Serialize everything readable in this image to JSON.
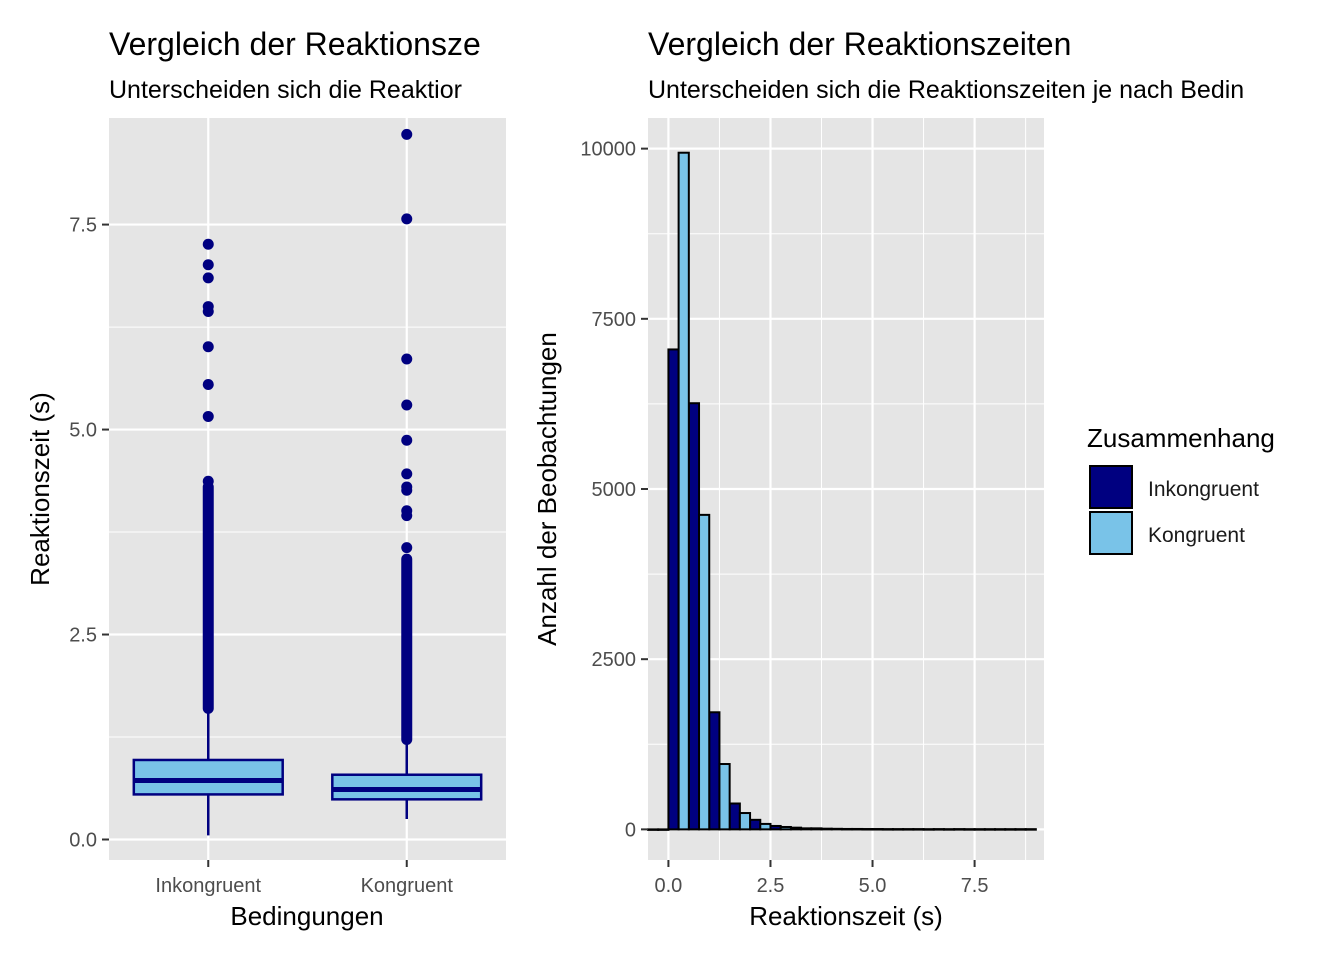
{
  "colors": {
    "inkongruent": "#000080",
    "kongruent": "#79c3e8",
    "panel_bg": "#e5e5e5",
    "grid": "#ffffff",
    "outlier": "#000080"
  },
  "chart_data": [
    {
      "type": "boxplot",
      "title": "Vergleich der Reaktionsze",
      "subtitle": "Unterscheiden sich die Reaktior",
      "xlabel": "Bedingungen",
      "ylabel": "Reaktionszeit (s)",
      "ylim": [
        -0.25,
        8.8
      ],
      "yticks": [
        0.0,
        2.5,
        5.0,
        7.5
      ],
      "ytick_labels": [
        "0.0",
        "2.5",
        "5.0",
        "7.5"
      ],
      "grid": true,
      "categories": [
        "Inkongruent",
        "Kongruent"
      ],
      "boxes": [
        {
          "name": "Inkongruent",
          "min": 0.05,
          "q1": 0.55,
          "median": 0.72,
          "q3": 0.97,
          "whisker_high": 1.6,
          "outlier_range": [
            1.6,
            4.3
          ],
          "outliers": [
            4.37,
            5.16,
            5.55,
            6.01,
            6.44,
            6.5,
            6.85,
            7.01,
            7.26
          ]
        },
        {
          "name": "Kongruent",
          "min": 0.25,
          "q1": 0.49,
          "median": 0.61,
          "q3": 0.79,
          "whisker_high": 1.22,
          "outlier_range": [
            1.22,
            3.42
          ],
          "outliers": [
            3.56,
            3.95,
            4.01,
            4.26,
            4.3,
            4.46,
            4.87,
            5.3,
            5.86,
            7.57,
            8.6
          ]
        }
      ]
    },
    {
      "type": "bar",
      "title": "Vergleich der Reaktionszeiten",
      "subtitle": "Unterscheiden sich die Reaktionszeiten je nach Bedin",
      "xlabel": "Reaktionszeit (s)",
      "ylabel": "Anzahl der Beobachtungen",
      "xlim": [
        -0.5,
        9.2
      ],
      "ylim": [
        -450,
        10450
      ],
      "xticks": [
        0.0,
        2.5,
        5.0,
        7.5
      ],
      "xtick_labels": [
        "0.0",
        "2.5",
        "5.0",
        "7.5"
      ],
      "yticks": [
        0,
        2500,
        5000,
        7500,
        10000
      ],
      "ytick_labels": [
        "0",
        "2500",
        "5000",
        "7500",
        "10000"
      ],
      "grid": true,
      "legend": {
        "title": "Zusammenhang",
        "position": "right",
        "entries": [
          "Inkongruent",
          "Kongruent"
        ]
      },
      "bin_width": 0.5,
      "series": [
        {
          "name": "Inkongruent",
          "x": [
            -0.25,
            0.25,
            0.75,
            1.25,
            1.75,
            2.25,
            2.75,
            3.25,
            3.75,
            4.25,
            4.75,
            5.25,
            5.75,
            6.25,
            6.75,
            7.25,
            7.75,
            8.25,
            8.75
          ],
          "values": [
            0,
            7050,
            6260,
            1720,
            380,
            140,
            50,
            25,
            15,
            8,
            6,
            5,
            4,
            4,
            4,
            4,
            3,
            3,
            3
          ]
        },
        {
          "name": "Kongruent",
          "x": [
            -0.25,
            0.25,
            0.75,
            1.25,
            1.75,
            2.25,
            2.75,
            3.25,
            3.75,
            4.25,
            4.75,
            5.25,
            5.75,
            6.25,
            6.75,
            7.25,
            7.75,
            8.25,
            8.75
          ],
          "values": [
            0,
            9940,
            4620,
            960,
            240,
            80,
            35,
            15,
            10,
            6,
            5,
            4,
            4,
            3,
            3,
            3,
            3,
            3,
            3
          ]
        }
      ]
    }
  ]
}
